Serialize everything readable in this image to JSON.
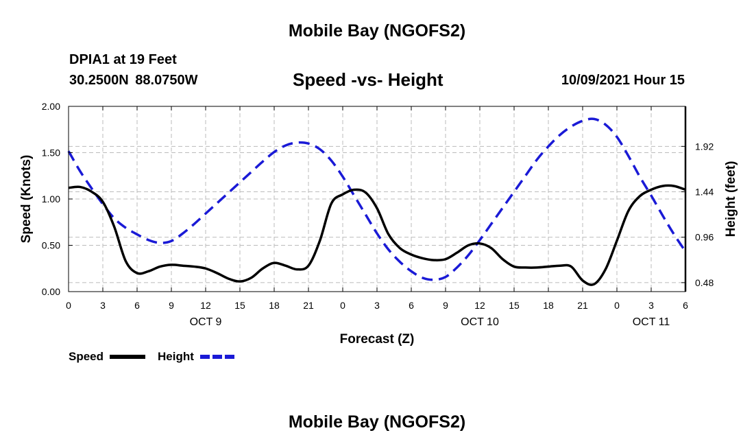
{
  "header": {
    "title": "Mobile Bay (NGOFS2)",
    "station": "DPIA1 at 19 Feet",
    "coordinates": "30.2500N  88.0750W",
    "chart_title": "Speed -vs- Height",
    "datetime": "10/09/2021 Hour 15"
  },
  "footer": {
    "title": "Mobile Bay (NGOFS2)"
  },
  "legend": {
    "speed_label": "Speed",
    "height_label": "Height"
  },
  "colors": {
    "speed": "#000000",
    "height": "#1a1ad6",
    "grid": "#bbbbbb"
  },
  "chart_data": {
    "type": "line",
    "title": "Speed -vs- Height",
    "xlabel": "Forecast (Z)",
    "ylabel": "Speed (Knots)",
    "y2label": "Height (feet)",
    "x_unit": "hours from 10/09/2021 00Z",
    "xlim": [
      0,
      54
    ],
    "ylim": [
      0,
      2.0
    ],
    "y2lim": [
      0.385,
      2.343
    ],
    "x_ticks": [
      0,
      3,
      6,
      9,
      12,
      15,
      18,
      21,
      24,
      27,
      30,
      33,
      36,
      39,
      42,
      45,
      48,
      51,
      54
    ],
    "x_tick_labels": [
      "0",
      "3",
      "6",
      "9",
      "12",
      "15",
      "18",
      "21",
      "0",
      "3",
      "6",
      "9",
      "12",
      "15",
      "18",
      "21",
      "0",
      "3",
      "6"
    ],
    "day_labels": [
      {
        "x": 12,
        "label": "OCT 9"
      },
      {
        "x": 36,
        "label": "OCT 10"
      },
      {
        "x": 51,
        "label": "OCT 11"
      }
    ],
    "y_ticks": [
      0,
      0.5,
      1.0,
      1.5,
      2.0
    ],
    "y_tick_labels": [
      "0.00",
      "0.50",
      "1.00",
      "1.50",
      "2.00"
    ],
    "y2_ticks": [
      0.48,
      0.96,
      1.44,
      1.92
    ],
    "y2_tick_labels": [
      "0.48",
      "0.96",
      "1.44",
      "1.92"
    ],
    "grid": true,
    "series": [
      {
        "name": "Speed",
        "axis": "left",
        "style": "solid",
        "x": [
          0,
          1,
          2,
          3,
          4,
          5,
          6,
          7,
          8,
          9,
          10,
          11,
          12,
          13,
          14,
          15,
          16,
          17,
          18,
          19,
          20,
          21,
          22,
          23,
          24,
          25,
          26,
          27,
          28,
          29,
          30,
          31,
          32,
          33,
          34,
          35,
          36,
          37,
          38,
          39,
          40,
          41,
          42,
          43,
          44,
          45,
          46,
          47,
          48,
          49,
          50,
          51,
          52,
          53,
          54
        ],
        "values": [
          1.12,
          1.13,
          1.08,
          0.97,
          0.7,
          0.33,
          0.2,
          0.22,
          0.27,
          0.29,
          0.28,
          0.27,
          0.25,
          0.2,
          0.14,
          0.11,
          0.15,
          0.25,
          0.31,
          0.28,
          0.24,
          0.28,
          0.55,
          0.95,
          1.05,
          1.1,
          1.07,
          0.9,
          0.62,
          0.47,
          0.4,
          0.36,
          0.34,
          0.35,
          0.42,
          0.5,
          0.52,
          0.47,
          0.35,
          0.27,
          0.26,
          0.26,
          0.27,
          0.28,
          0.27,
          0.12,
          0.08,
          0.24,
          0.55,
          0.87,
          1.03,
          1.1,
          1.14,
          1.14,
          1.1
        ]
      },
      {
        "name": "Height",
        "axis": "right",
        "style": "dashed",
        "x": [
          0,
          1,
          2,
          3,
          4,
          5,
          6,
          7,
          8,
          9,
          10,
          11,
          12,
          13,
          14,
          15,
          16,
          17,
          18,
          19,
          20,
          21,
          22,
          23,
          24,
          25,
          26,
          27,
          28,
          29,
          30,
          31,
          32,
          33,
          34,
          35,
          36,
          37,
          38,
          39,
          40,
          41,
          42,
          43,
          44,
          45,
          46,
          47,
          48,
          49,
          50,
          51,
          52,
          53,
          54
        ],
        "values": [
          1.87,
          1.66,
          1.48,
          1.31,
          1.16,
          1.06,
          0.99,
          0.93,
          0.9,
          0.92,
          1.0,
          1.1,
          1.21,
          1.32,
          1.43,
          1.54,
          1.65,
          1.76,
          1.86,
          1.93,
          1.96,
          1.95,
          1.89,
          1.77,
          1.6,
          1.4,
          1.2,
          1.0,
          0.83,
          0.7,
          0.6,
          0.53,
          0.51,
          0.54,
          0.64,
          0.77,
          0.93,
          1.1,
          1.27,
          1.44,
          1.61,
          1.78,
          1.92,
          2.04,
          2.13,
          2.19,
          2.21,
          2.15,
          2.02,
          1.82,
          1.6,
          1.4,
          1.19,
          0.99,
          0.81
        ]
      }
    ]
  }
}
